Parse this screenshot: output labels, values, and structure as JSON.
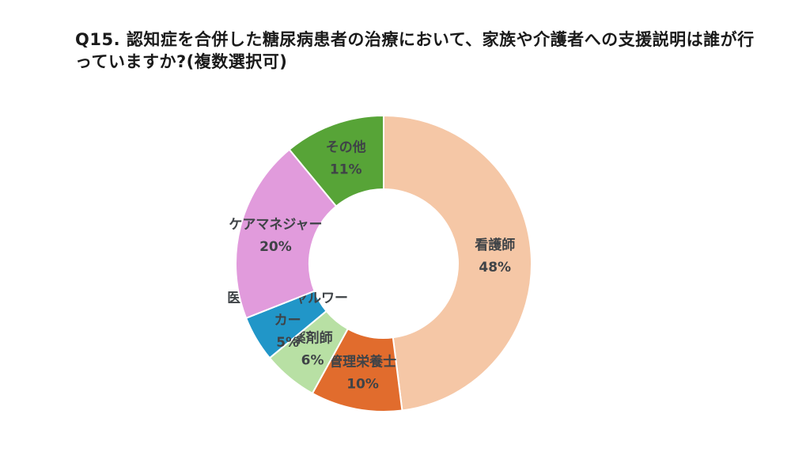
{
  "title": {
    "text": "Q15. 認知症を合併した糖尿病患者の治療において、家族や介護者への支援説明は誰が行っていますか?(複数選択可)"
  },
  "chart_data": {
    "type": "pie",
    "subtype": "donut",
    "title": "Q15. 認知症を合併した糖尿病患者の治療において、家族や介護者への支援説明は誰が行っていますか?(複数選択可)",
    "legend": "none",
    "labels_position": "inside",
    "unit": "%",
    "direction": "clockwise",
    "start_angle_deg": 0,
    "categories": [
      "看護師",
      "管理栄養士",
      "薬剤師",
      "医療ソーシャルワーカー",
      "ケアマネジャー",
      "その他"
    ],
    "values": [
      48,
      10,
      6,
      5,
      20,
      11
    ],
    "slices": [
      {
        "label": "看護師",
        "value": 48,
        "pct_label": "48%",
        "color": "#F5C7A6",
        "label_lines": [
          "看護師"
        ]
      },
      {
        "label": "管理栄養士",
        "value": 10,
        "pct_label": "10%",
        "color": "#E16C2D",
        "label_lines": [
          "管理栄養士"
        ]
      },
      {
        "label": "薬剤師",
        "value": 6,
        "pct_label": "6%",
        "color": "#B8E0A4",
        "label_lines": [
          "薬剤師"
        ]
      },
      {
        "label": "医療ソーシャルワーカー",
        "value": 5,
        "pct_label": "5%",
        "color": "#2196C8",
        "label_lines": [
          "医療ソーシャルワー",
          "カー"
        ]
      },
      {
        "label": "ケアマネジャー",
        "value": 20,
        "pct_label": "20%",
        "color": "#E19BDC",
        "label_lines": [
          "ケアマネジャー"
        ]
      },
      {
        "label": "その他",
        "value": 11,
        "pct_label": "11%",
        "color": "#57A437",
        "label_lines": [
          "その他"
        ]
      }
    ],
    "label_color": "#3F4347",
    "separator_color": "#FFFFFF",
    "background_color": "#FFFFFF"
  }
}
